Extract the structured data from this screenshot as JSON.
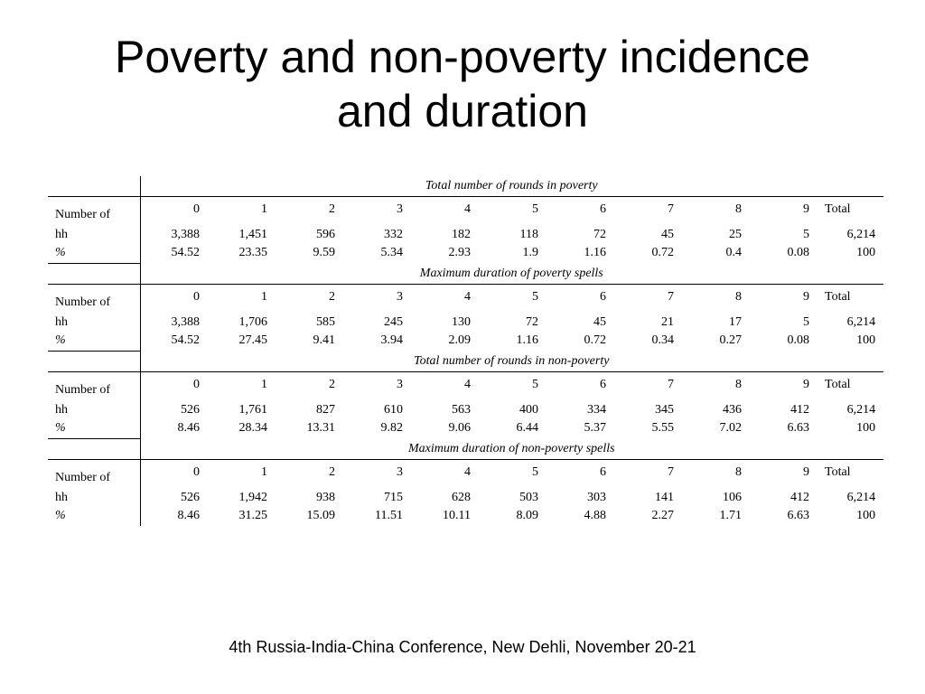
{
  "slide": {
    "title_line1": "Poverty and non-poverty incidence",
    "title_line2": "and duration",
    "footer": "4th Russia-India-China Conference, New Dehli, November 20-21"
  },
  "table": {
    "row_label_count_1": "Number of",
    "row_label_count_2": "hh",
    "row_label_pct": "%",
    "sections": [
      {
        "heading": "Total number of rounds in poverty",
        "columns": [
          "0",
          "1",
          "2",
          "3",
          "4",
          "5",
          "6",
          "7",
          "8",
          "9",
          "Total"
        ],
        "counts": [
          "3,388",
          "1,451",
          "596",
          "332",
          "182",
          "118",
          "72",
          "45",
          "25",
          "5",
          "6,214"
        ],
        "percents": [
          "54.52",
          "23.35",
          "9.59",
          "5.34",
          "2.93",
          "1.9",
          "1.16",
          "0.72",
          "0.4",
          "0.08",
          "100"
        ]
      },
      {
        "heading": "Maximum duration of poverty spells",
        "columns": [
          "0",
          "1",
          "2",
          "3",
          "4",
          "5",
          "6",
          "7",
          "8",
          "9",
          "Total"
        ],
        "counts": [
          "3,388",
          "1,706",
          "585",
          "245",
          "130",
          "72",
          "45",
          "21",
          "17",
          "5",
          "6,214"
        ],
        "percents": [
          "54.52",
          "27.45",
          "9.41",
          "3.94",
          "2.09",
          "1.16",
          "0.72",
          "0.34",
          "0.27",
          "0.08",
          "100"
        ]
      },
      {
        "heading": "Total number of rounds in non-poverty",
        "columns": [
          "0",
          "1",
          "2",
          "3",
          "4",
          "5",
          "6",
          "7",
          "8",
          "9",
          "Total"
        ],
        "counts": [
          "526",
          "1,761",
          "827",
          "610",
          "563",
          "400",
          "334",
          "345",
          "436",
          "412",
          "6,214"
        ],
        "percents": [
          "8.46",
          "28.34",
          "13.31",
          "9.82",
          "9.06",
          "6.44",
          "5.37",
          "5.55",
          "7.02",
          "6.63",
          "100"
        ]
      },
      {
        "heading": "Maximum duration of non-poverty spells",
        "columns": [
          "0",
          "1",
          "2",
          "3",
          "4",
          "5",
          "6",
          "7",
          "8",
          "9",
          "Total"
        ],
        "counts": [
          "526",
          "1,942",
          "938",
          "715",
          "628",
          "503",
          "303",
          "141",
          "106",
          "412",
          "6,214"
        ],
        "percents": [
          "8.46",
          "31.25",
          "15.09",
          "11.51",
          "10.11",
          "8.09",
          "4.88",
          "2.27",
          "1.71",
          "6.63",
          "100"
        ]
      }
    ]
  }
}
